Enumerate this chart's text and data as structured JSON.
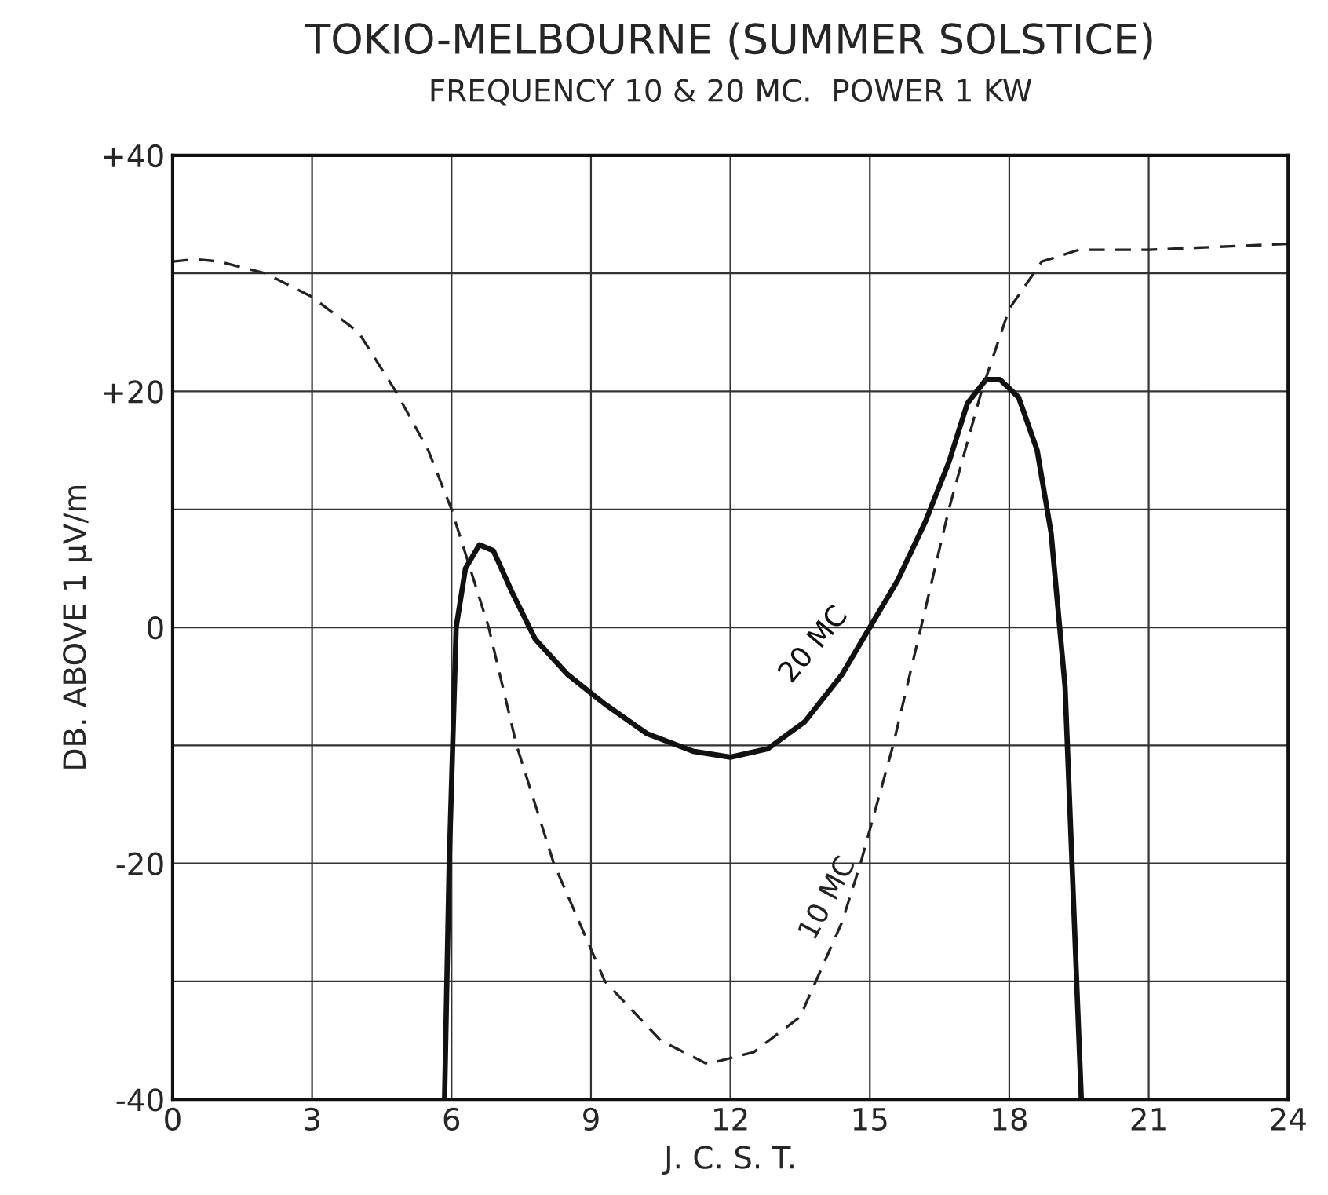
{
  "chart_data": {
    "type": "line",
    "title": "TOKIO-MELBOURNE (SUMMER SOLSTICE)",
    "subtitle": "FREQUENCY 10 & 20 MC.  POWER 1 KW",
    "xlabel": "J. C. S. T.",
    "ylabel": "DB. ABOVE 1 μV/m",
    "xlim": [
      0,
      24
    ],
    "xticks": [
      0,
      3,
      6,
      9,
      12,
      15,
      18,
      21,
      24
    ],
    "ylim": [
      -40,
      40
    ],
    "yticks": [
      {
        "value": -40,
        "label": "-40"
      },
      {
        "value": -30,
        "label": null
      },
      {
        "value": -20,
        "label": "-20"
      },
      {
        "value": -10,
        "label": null
      },
      {
        "value": 0,
        "label": "0"
      },
      {
        "value": 10,
        "label": null
      },
      {
        "value": 20,
        "label": "+20"
      },
      {
        "value": 30,
        "label": null
      },
      {
        "value": 40,
        "label": "+40"
      }
    ],
    "grid": true,
    "legend": false,
    "series": [
      {
        "name": "20 MC",
        "color": "#111111",
        "line_style": "solid",
        "x": [
          5.85,
          5.95,
          6.1,
          6.3,
          6.6,
          6.9,
          7.3,
          7.8,
          8.5,
          9.3,
          10.2,
          11.2,
          12.0,
          12.8,
          13.6,
          14.4,
          15.0,
          15.6,
          16.2,
          16.7,
          17.1,
          17.5,
          17.8,
          18.2,
          18.6,
          18.9,
          19.2,
          19.35,
          19.45,
          19.55
        ],
        "values": [
          -40,
          -20,
          0,
          5,
          7,
          6.5,
          3,
          -1,
          -4,
          -6.5,
          -9,
          -10.5,
          -11,
          -10.3,
          -8,
          -4,
          0,
          4,
          9,
          14,
          19,
          21,
          21,
          19.5,
          15,
          8,
          -5,
          -20,
          -30,
          -40
        ]
      },
      {
        "name": "10 MC",
        "color": "#222222",
        "line_style": "dashed",
        "x": [
          0,
          0.5,
          1,
          2,
          3,
          4,
          4.8,
          5.5,
          6,
          6.4,
          6.8,
          7.4,
          8.2,
          9.3,
          10.5,
          11.5,
          12.5,
          13.5,
          14.4,
          14.8,
          15.5,
          16.1,
          16.7,
          17.4,
          18.0,
          18.7,
          19.5,
          21,
          24
        ],
        "values": [
          31,
          31.2,
          31,
          30,
          28,
          25,
          20,
          15,
          10,
          5,
          0,
          -10,
          -20,
          -30,
          -35,
          -37,
          -36,
          -33,
          -25,
          -20,
          -10,
          0,
          10,
          20,
          27,
          31,
          32,
          32,
          32.5
        ]
      }
    ]
  }
}
